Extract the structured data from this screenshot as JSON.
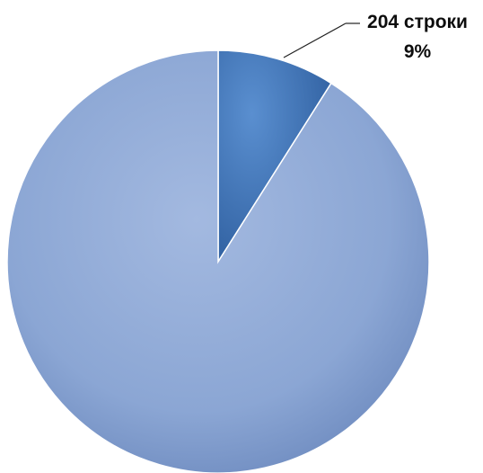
{
  "chart_data": {
    "type": "pie",
    "title": "",
    "start_angle_deg": 0,
    "direction": "clockwise",
    "series": [
      {
        "values": [
          9,
          91
        ],
        "labels": [
          "204 строки",
          ""
        ],
        "percent_labels": [
          "9%",
          ""
        ],
        "colors": [
          "#3f72b3",
          "#8ba6d4"
        ]
      }
    ]
  }
}
